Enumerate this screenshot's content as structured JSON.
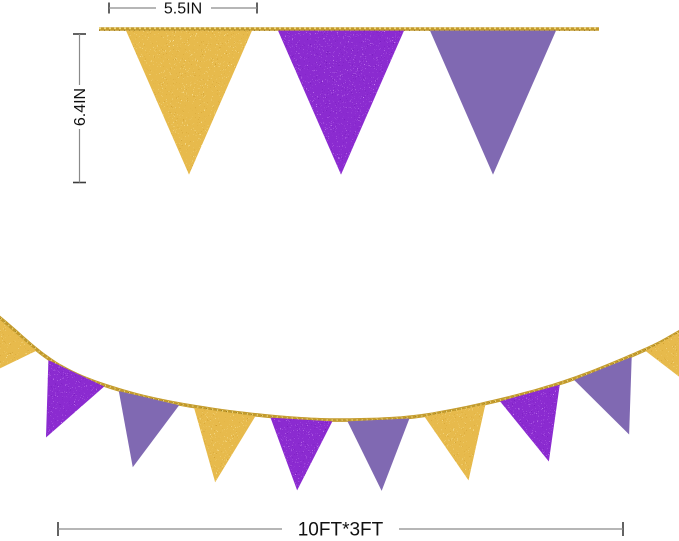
{
  "annotations": {
    "flag_width": "5.5IN",
    "flag_height": "6.4IN",
    "banner_size": "10FT*3FT"
  },
  "colors": {
    "gold": "#E7BA4C",
    "purple": "#8B2BD0",
    "lavender": "#8069B2",
    "string_gold": "#C39A2B",
    "dimension_text": "#111111"
  },
  "top_banner": {
    "pennants": [
      "gold",
      "purple",
      "lavender"
    ]
  },
  "bottom_banner": {
    "pennants": [
      "gold",
      "purple",
      "lavender",
      "gold",
      "purple",
      "lavender",
      "gold",
      "purple",
      "lavender",
      "gold"
    ]
  }
}
